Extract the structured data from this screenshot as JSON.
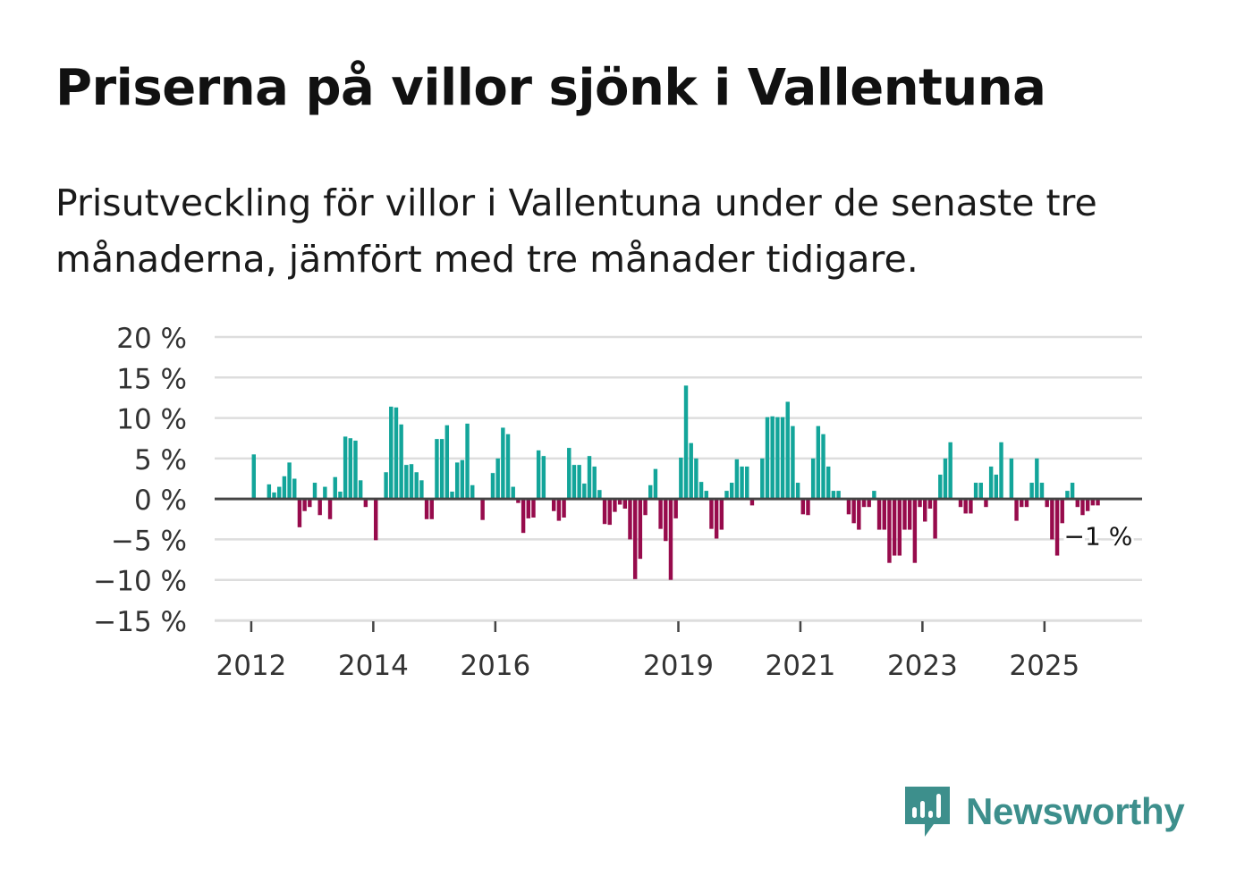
{
  "title": "Priserna på villor sjönk i Vallentuna",
  "subtitle": "Prisutveckling för villor i Vallentuna under de senaste tre månaderna, jämfört med tre månader tidigare.",
  "brand": {
    "name": "Newsworthy",
    "icon": "newsworthy-logo-icon",
    "color": "#3d8f8c"
  },
  "colors": {
    "positive": "#13a59a",
    "negative": "#970b4c",
    "gridline": "#dddddd",
    "zeroline": "#444444",
    "axis_text": "#333333"
  },
  "chart_data": {
    "type": "bar",
    "title": "Priserna på villor sjönk i Vallentuna",
    "xlabel": "",
    "ylabel": "",
    "ylim": [
      -15,
      20
    ],
    "yticks": [
      20,
      15,
      10,
      5,
      0,
      -5,
      -10,
      -15
    ],
    "ytick_labels": [
      "20 %",
      "15 %",
      "10 %",
      "5 %",
      "0 %",
      "−5 %",
      "−10 %",
      "−15 %"
    ],
    "xlim": [
      2011.4,
      2026.6
    ],
    "xticks": [
      2012,
      2014,
      2016,
      2019,
      2021,
      2023,
      2025
    ],
    "xtick_labels": [
      "2012",
      "2014",
      "2016",
      "2019",
      "2021",
      "2023",
      "2025"
    ],
    "grid": true,
    "annotation": {
      "text": "−1 %",
      "refers_to": "last value"
    },
    "series": [
      {
        "name": "Prisutveckling",
        "start": "2012-01",
        "frequency": "monthly",
        "values": [
          5.5,
          0,
          0,
          1.8,
          0.8,
          1.5,
          2.8,
          4.5,
          2.5,
          -3.5,
          -1.5,
          -1,
          2,
          -2,
          1.5,
          -2.5,
          2.7,
          0.9,
          7.7,
          7.5,
          7.2,
          2.3,
          -1,
          0,
          -5.1,
          0,
          3.3,
          11.4,
          11.3,
          9.2,
          4.2,
          4.3,
          3.3,
          2.3,
          -2.5,
          -2.5,
          7.4,
          7.4,
          9.1,
          0.9,
          4.5,
          4.8,
          9.3,
          1.7,
          0,
          -2.6,
          0,
          3.2,
          5,
          8.8,
          8,
          1.5,
          -0.5,
          -4.2,
          -2.4,
          -2.3,
          6,
          5.3,
          0,
          -1.5,
          -2.7,
          -2.3,
          6.3,
          4.2,
          4.2,
          1.9,
          5.3,
          4,
          1.1,
          -3.1,
          -3.2,
          -1.6,
          -0.7,
          -1.2,
          -5,
          -9.9,
          -7.4,
          -2,
          1.7,
          3.7,
          -3.7,
          -5.2,
          -10,
          -2.4,
          5.1,
          14,
          6.9,
          5,
          2.1,
          1,
          -3.7,
          -4.9,
          -3.8,
          1,
          2,
          4.9,
          4,
          4,
          -0.8,
          0,
          5,
          10.1,
          10.2,
          10.1,
          10.1,
          12,
          9,
          2,
          -1.9,
          -2,
          5,
          9,
          8,
          4,
          1,
          1,
          0,
          -1.9,
          -3,
          -3.8,
          -1,
          -1,
          1,
          -3.8,
          -3.8,
          -7.9,
          -7,
          -7,
          -3.8,
          -3.8,
          -7.9,
          -1,
          -2.8,
          -1.2,
          -4.9,
          3,
          5,
          7,
          0,
          -1,
          -1.8,
          -1.8,
          2,
          2,
          -1,
          4,
          3,
          7,
          0,
          5,
          -2.7,
          -1,
          -1,
          2,
          5,
          2,
          -1,
          -5,
          -7,
          -3,
          1,
          2,
          -1,
          -2,
          -1.5,
          -0.8,
          -0.8
        ]
      }
    ]
  }
}
